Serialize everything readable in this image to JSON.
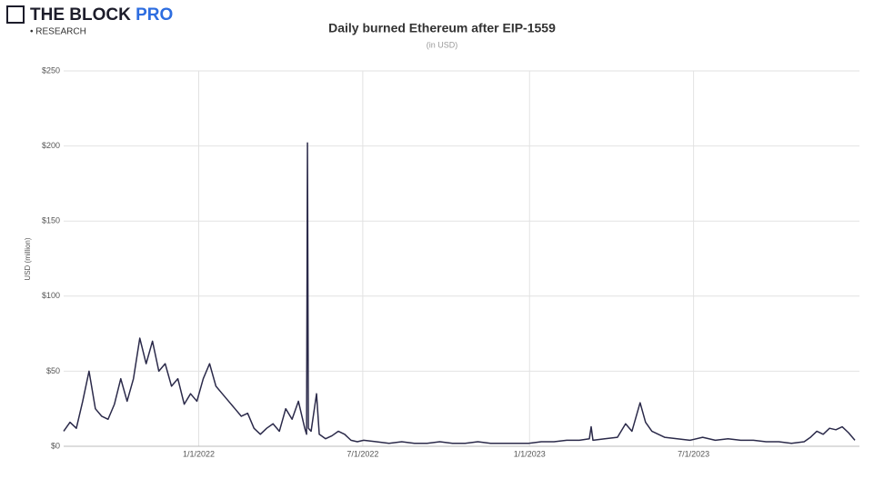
{
  "brand": {
    "name": "THE BLOCK",
    "tier": "PRO",
    "tagline": "• RESEARCH"
  },
  "chart_data": {
    "type": "line",
    "title": "Daily burned Ethereum after EIP-1559",
    "subtitle": "(in USD)",
    "y_label": "USD (million)",
    "color": "#2b2a4a",
    "grid": true,
    "x": [
      "2021-08-05",
      "2021-08-12",
      "2021-08-19",
      "2021-08-26",
      "2021-09-02",
      "2021-09-09",
      "2021-09-16",
      "2021-09-23",
      "2021-09-30",
      "2021-10-07",
      "2021-10-14",
      "2021-10-21",
      "2021-10-28",
      "2021-11-04",
      "2021-11-11",
      "2021-11-18",
      "2021-11-25",
      "2021-12-02",
      "2021-12-09",
      "2021-12-16",
      "2021-12-23",
      "2021-12-30",
      "2022-01-06",
      "2022-01-13",
      "2022-01-20",
      "2022-01-27",
      "2022-02-03",
      "2022-02-10",
      "2022-02-17",
      "2022-02-24",
      "2022-03-03",
      "2022-03-10",
      "2022-03-17",
      "2022-03-24",
      "2022-03-31",
      "2022-04-07",
      "2022-04-14",
      "2022-04-21",
      "2022-04-28",
      "2022-04-30",
      "2022-05-01",
      "2022-05-02",
      "2022-05-05",
      "2022-05-11",
      "2022-05-14",
      "2022-05-21",
      "2022-05-28",
      "2022-06-04",
      "2022-06-11",
      "2022-06-18",
      "2022-06-25",
      "2022-07-02",
      "2022-07-16",
      "2022-07-30",
      "2022-08-13",
      "2022-08-27",
      "2022-09-10",
      "2022-09-24",
      "2022-10-08",
      "2022-10-22",
      "2022-11-05",
      "2022-11-19",
      "2022-12-03",
      "2022-12-17",
      "2022-12-31",
      "2023-01-14",
      "2023-01-28",
      "2023-02-11",
      "2023-02-25",
      "2023-03-08",
      "2023-03-10",
      "2023-03-12",
      "2023-03-25",
      "2023-04-08",
      "2023-04-17",
      "2023-04-24",
      "2023-05-03",
      "2023-05-09",
      "2023-05-16",
      "2023-05-30",
      "2023-06-13",
      "2023-06-27",
      "2023-07-11",
      "2023-07-25",
      "2023-08-08",
      "2023-08-22",
      "2023-09-05",
      "2023-09-19",
      "2023-10-03",
      "2023-10-17",
      "2023-10-31",
      "2023-11-07",
      "2023-11-14",
      "2023-11-21",
      "2023-11-28",
      "2023-12-05",
      "2023-12-12",
      "2023-12-19",
      "2023-12-26"
    ],
    "values": [
      10,
      16,
      12,
      30,
      50,
      25,
      20,
      18,
      28,
      45,
      30,
      45,
      72,
      55,
      70,
      50,
      55,
      40,
      45,
      28,
      35,
      30,
      45,
      55,
      40,
      35,
      30,
      25,
      20,
      22,
      12,
      8,
      12,
      15,
      10,
      25,
      18,
      30,
      12,
      8,
      202,
      12,
      10,
      35,
      8,
      5,
      7,
      10,
      8,
      4,
      3,
      4,
      3,
      2,
      3,
      2,
      2,
      3,
      2,
      2,
      3,
      2,
      2,
      2,
      2,
      3,
      3,
      4,
      4,
      5,
      13,
      4,
      5,
      6,
      15,
      10,
      29,
      16,
      10,
      6,
      5,
      4,
      6,
      4,
      5,
      4,
      4,
      3,
      3,
      2,
      3,
      6,
      10,
      8,
      12,
      11,
      13,
      9,
      4
    ],
    "xlim": [
      "2021-08-05",
      "2023-12-31"
    ],
    "xticks": [
      {
        "value": "2022-01-01",
        "label": "1/1/2022"
      },
      {
        "value": "2022-07-01",
        "label": "7/1/2022"
      },
      {
        "value": "2023-01-01",
        "label": "1/1/2023"
      },
      {
        "value": "2023-07-01",
        "label": "7/1/2023"
      }
    ],
    "ylim": [
      0,
      250
    ],
    "yticks": [
      {
        "value": 0,
        "label": "$0"
      },
      {
        "value": 50,
        "label": "$50"
      },
      {
        "value": 100,
        "label": "$100"
      },
      {
        "value": 150,
        "label": "$150"
      },
      {
        "value": 200,
        "label": "$200"
      },
      {
        "value": 250,
        "label": "$250"
      }
    ]
  }
}
